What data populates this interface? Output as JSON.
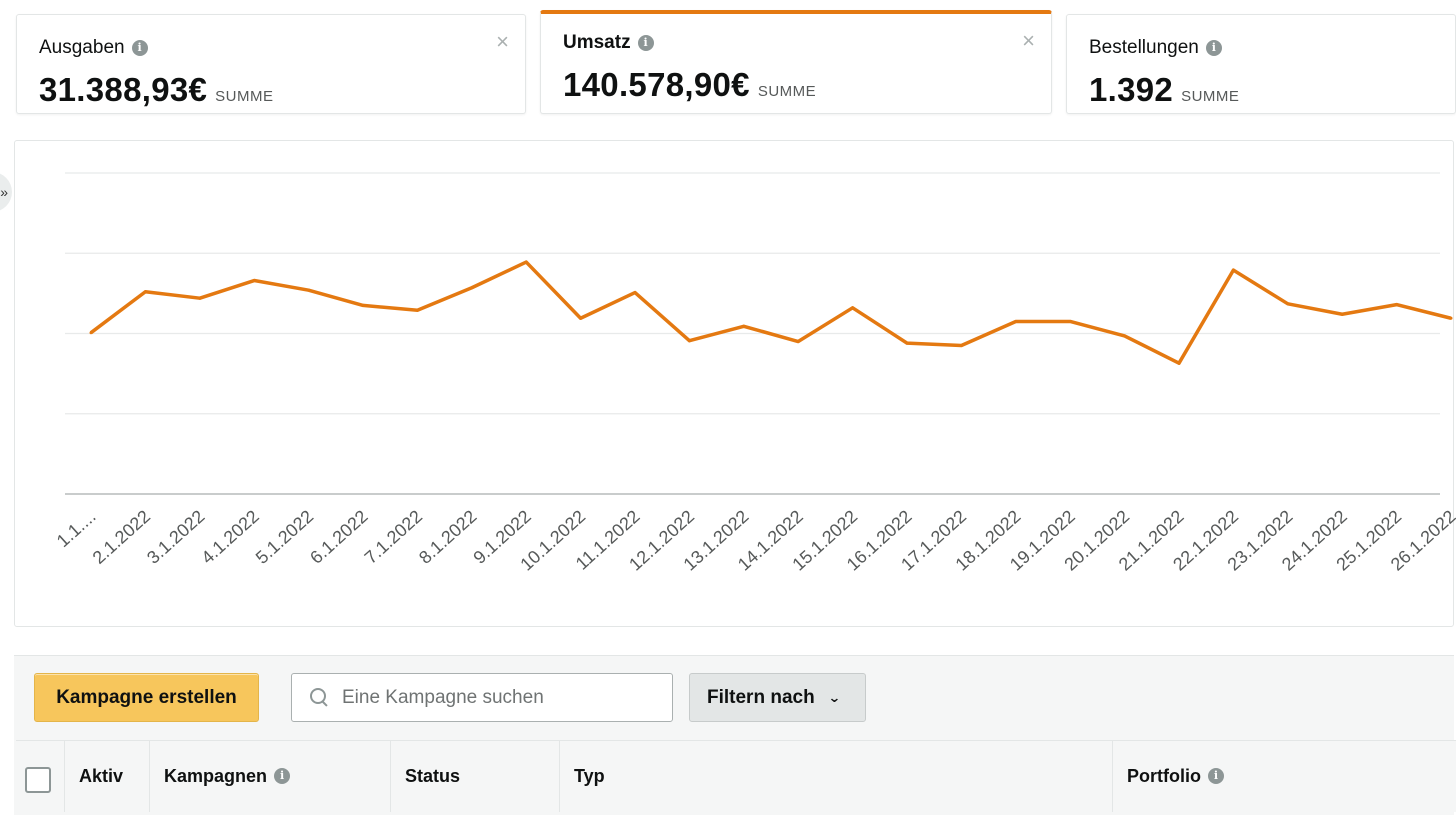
{
  "metrics": [
    {
      "title": "Ausgaben",
      "value": "31.388,93€",
      "sum_label": "SUMME",
      "closable": true,
      "active": false
    },
    {
      "title": "Umsatz",
      "value": "140.578,90€",
      "sum_label": "SUMME",
      "closable": true,
      "active": true
    },
    {
      "title": "Bestellungen",
      "value": "1.392",
      "sum_label": "SUMME",
      "closable": false,
      "active": false
    }
  ],
  "info_glyph": "i",
  "close_glyph": "×",
  "side_handle_glyph": "»",
  "chart_data": {
    "type": "line",
    "x": [
      "1.1....",
      "2.1.2022",
      "3.1.2022",
      "4.1.2022",
      "5.1.2022",
      "6.1.2022",
      "7.1.2022",
      "8.1.2022",
      "9.1.2022",
      "10.1.2022",
      "11.1.2022",
      "12.1.2022",
      "13.1.2022",
      "14.1.2022",
      "15.1.2022",
      "16.1.2022",
      "17.1.2022",
      "18.1.2022",
      "19.1.2022",
      "20.1.2022",
      "21.1.2022",
      "22.1.2022",
      "23.1.2022",
      "24.1.2022",
      "25.1.2022",
      "26.1.2022"
    ],
    "series": [
      {
        "values": [
          4010,
          4520,
          4440,
          4660,
          4540,
          4350,
          4290,
          4570,
          4890,
          4190,
          4510,
          3910,
          4090,
          3900,
          4320,
          3880,
          3850,
          4150,
          4150,
          3970,
          3630,
          4790,
          4370,
          4240,
          4360,
          4190
        ],
        "color": "#e47911"
      }
    ],
    "ylim": [
      2000,
      6000
    ],
    "grid_lines": 4,
    "grid": true,
    "yticks_visible": false,
    "title": "",
    "xlabel": "",
    "ylabel": ""
  },
  "toolbar": {
    "create_label": "Kampagne erstellen",
    "search_placeholder": "Eine Kampagne suchen",
    "filter_label": "Filtern nach",
    "filter_chevron": "⌄"
  },
  "table": {
    "columns": [
      "Aktiv",
      "Kampagnen",
      "Status",
      "Typ",
      "Portfolio"
    ],
    "info_columns": [
      "Kampagnen",
      "Portfolio"
    ]
  }
}
